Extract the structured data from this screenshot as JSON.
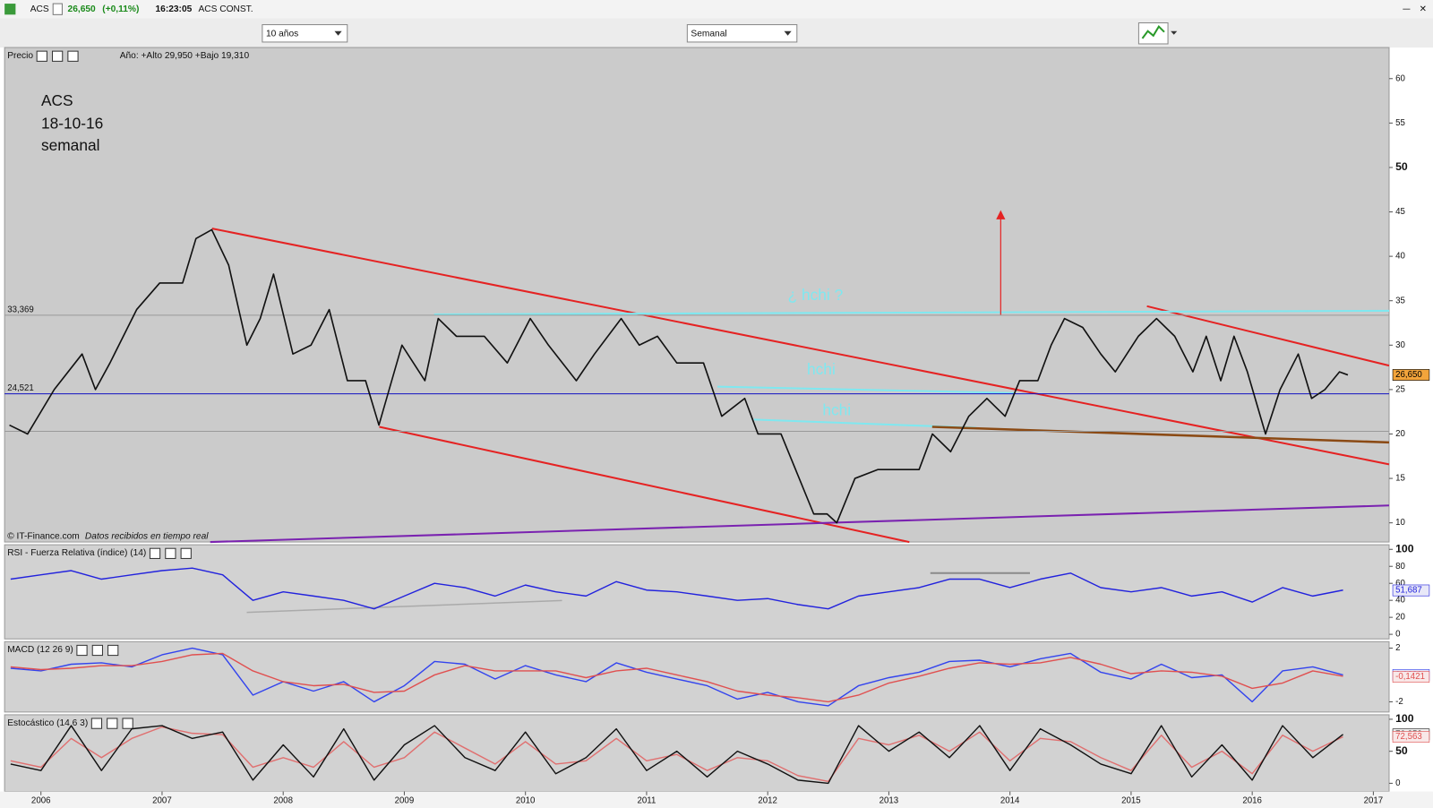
{
  "header": {
    "symbol": "ACS",
    "price": "26,650",
    "change": "(+0,11%)",
    "time": "16:23:05",
    "name": "ACS CONST."
  },
  "controls": {
    "period": "10 años",
    "interval": "Semanal"
  },
  "price_panel": {
    "info": "Año: +Alto 29,950 +Bajo 19,310",
    "notes": [
      "ACS",
      "18-10-16",
      "semanal"
    ],
    "annotations": [
      "¿ hchi ?",
      "hchi",
      "hchi"
    ],
    "copyright": "© IT-Finance.com",
    "source": "Datos recibidos en tiempo real"
  },
  "chart_data": [
    {
      "type": "line",
      "title": "Precio",
      "x": [
        2005.74,
        2005.89,
        2006.11,
        2006.34,
        2006.45,
        2006.57,
        2006.79,
        2006.98,
        2007.17,
        2007.28,
        2007.41,
        2007.55,
        2007.7,
        2007.81,
        2007.92,
        2008.08,
        2008.23,
        2008.38,
        2008.53,
        2008.68,
        2008.79,
        2008.98,
        2009.17,
        2009.28,
        2009.43,
        2009.66,
        2009.85,
        2010.04,
        2010.19,
        2010.42,
        2010.57,
        2010.79,
        2010.94,
        2011.09,
        2011.25,
        2011.47,
        2011.62,
        2011.81,
        2011.92,
        2012.11,
        2012.26,
        2012.38,
        2012.49,
        2012.57,
        2012.72,
        2012.91,
        2013.09,
        2013.25,
        2013.36,
        2013.51,
        2013.66,
        2013.81,
        2013.96,
        2014.08,
        2014.23,
        2014.34,
        2014.45,
        2014.6,
        2014.75,
        2014.87,
        2015.06,
        2015.21,
        2015.36,
        2015.51,
        2015.62,
        2015.74,
        2015.85,
        2015.96,
        2016.11,
        2016.23,
        2016.38,
        2016.49,
        2016.6,
        2016.72,
        2016.79
      ],
      "series": [
        {
          "color": "#111111",
          "values": [
            21,
            20,
            25,
            29,
            25,
            28,
            34,
            37,
            37,
            42,
            43,
            39,
            30,
            33,
            38,
            29,
            30,
            34,
            26,
            26,
            21,
            30,
            26,
            33,
            31,
            31,
            28,
            33,
            30,
            26,
            29,
            33,
            30,
            31,
            28,
            28,
            22,
            24,
            20,
            20,
            15,
            11,
            11,
            10,
            15,
            16,
            16,
            16,
            20,
            18,
            22,
            24,
            22,
            26,
            26,
            30,
            33,
            32,
            29,
            27,
            31,
            33,
            31,
            27,
            31,
            26,
            31,
            27,
            20,
            25,
            29,
            24,
            25,
            27,
            26.65
          ]
        }
      ],
      "xlim": [
        2005.7,
        2017.13
      ],
      "ylim": [
        7.84,
        63.5
      ],
      "yticks": [
        10,
        15,
        20,
        25,
        30,
        35,
        40,
        45,
        50,
        55,
        60
      ],
      "hlines": [
        {
          "value": 33.369,
          "label": "33,369",
          "color": "#9a9a9a"
        },
        {
          "value": 24.521,
          "label": "24,521",
          "color": "#1010c0"
        },
        {
          "value": 20.3,
          "color": "#9a9a9a"
        }
      ],
      "tags": [
        {
          "value": 26.65,
          "label": "26,650",
          "fill": "#f3a43b",
          "color": "#000000"
        }
      ]
    },
    {
      "type": "line",
      "title": "RSI - Fuerza Relativa (índice) (14)",
      "x": [
        2005.75,
        2006,
        2006.25,
        2006.5,
        2006.75,
        2007,
        2007.25,
        2007.5,
        2007.75,
        2008,
        2008.25,
        2008.5,
        2008.75,
        2009,
        2009.25,
        2009.5,
        2009.75,
        2010,
        2010.25,
        2010.5,
        2010.75,
        2011,
        2011.25,
        2011.5,
        2011.75,
        2012,
        2012.25,
        2012.5,
        2012.75,
        2013,
        2013.25,
        2013.5,
        2013.75,
        2014,
        2014.25,
        2014.5,
        2014.75,
        2015,
        2015.25,
        2015.5,
        2015.75,
        2016,
        2016.25,
        2016.5,
        2016.75
      ],
      "series": [
        {
          "color": "#2222dd",
          "values": [
            65,
            70,
            75,
            65,
            70,
            75,
            78,
            70,
            40,
            50,
            45,
            40,
            30,
            45,
            60,
            55,
            45,
            58,
            50,
            45,
            62,
            52,
            50,
            45,
            40,
            42,
            35,
            30,
            45,
            50,
            55,
            65,
            65,
            55,
            65,
            72,
            55,
            50,
            55,
            45,
            50,
            38,
            55,
            45,
            52
          ]
        }
      ],
      "xlim": [
        2005.7,
        2017.13
      ],
      "ylim": [
        -5.4,
        105.4
      ],
      "yticks": [
        0,
        20,
        40,
        60,
        80,
        100
      ],
      "tags": [
        {
          "value": 51.687,
          "label": "51,687",
          "fill": "#e8e8f8",
          "color": "#2222dd"
        }
      ]
    },
    {
      "type": "line",
      "title": "MACD (12 26 9)",
      "x": [
        2005.75,
        2006,
        2006.25,
        2006.5,
        2006.75,
        2007,
        2007.25,
        2007.5,
        2007.75,
        2008,
        2008.25,
        2008.5,
        2008.75,
        2009,
        2009.25,
        2009.5,
        2009.75,
        2010,
        2010.25,
        2010.5,
        2010.75,
        2011,
        2011.25,
        2011.5,
        2011.75,
        2012,
        2012.25,
        2012.5,
        2012.75,
        2013,
        2013.25,
        2013.5,
        2013.75,
        2014,
        2014.25,
        2014.5,
        2014.75,
        2015,
        2015.25,
        2015.5,
        2015.75,
        2016,
        2016.25,
        2016.5,
        2016.75
      ],
      "series": [
        {
          "color": "#3344ee",
          "values": [
            0.5,
            0.3,
            0.8,
            0.9,
            0.6,
            1.5,
            2.0,
            1.5,
            -1.5,
            -0.5,
            -1.2,
            -0.5,
            -2.0,
            -0.8,
            1.0,
            0.8,
            -0.3,
            0.7,
            0.0,
            -0.5,
            0.9,
            0.2,
            -0.3,
            -0.8,
            -1.8,
            -1.3,
            -2.0,
            -2.3,
            -0.8,
            -0.2,
            0.2,
            1.0,
            1.1,
            0.6,
            1.2,
            1.6,
            0.2,
            -0.3,
            0.8,
            -0.2,
            0.0,
            -2.0,
            0.3,
            0.6,
            0.0
          ]
        },
        {
          "color": "#e05050",
          "values": [
            0.6,
            0.4,
            0.5,
            0.7,
            0.7,
            1.0,
            1.5,
            1.6,
            0.3,
            -0.5,
            -0.8,
            -0.7,
            -1.3,
            -1.2,
            0.0,
            0.7,
            0.3,
            0.3,
            0.3,
            -0.2,
            0.3,
            0.5,
            0.0,
            -0.5,
            -1.2,
            -1.5,
            -1.7,
            -2.0,
            -1.5,
            -0.6,
            -0.1,
            0.5,
            0.9,
            0.8,
            0.9,
            1.3,
            0.8,
            0.1,
            0.3,
            0.2,
            -0.1,
            -1.0,
            -0.6,
            0.3,
            -0.1
          ]
        }
      ],
      "xlim": [
        2005.7,
        2017.13
      ],
      "ylim": [
        -2.76,
        2.48
      ],
      "yticks": [
        -2,
        2
      ],
      "tags": [
        {
          "value": 0.0039,
          "label": "0,0039",
          "fill": "#e8e8f8",
          "color": "#3344ee"
        },
        {
          "value": -0.1421,
          "label": "-0,1421",
          "fill": "#f8e8e8",
          "color": "#e05050"
        }
      ]
    },
    {
      "type": "line",
      "title": "Estocástico (14 6 3)",
      "x": [
        2005.75,
        2006,
        2006.25,
        2006.5,
        2006.75,
        2007,
        2007.25,
        2007.5,
        2007.75,
        2008,
        2008.25,
        2008.5,
        2008.75,
        2009,
        2009.25,
        2009.5,
        2009.75,
        2010,
        2010.25,
        2010.5,
        2010.75,
        2011,
        2011.25,
        2011.5,
        2011.75,
        2012,
        2012.25,
        2012.5,
        2012.75,
        2013,
        2013.25,
        2013.5,
        2013.75,
        2014,
        2014.25,
        2014.5,
        2014.75,
        2015,
        2015.25,
        2015.5,
        2015.75,
        2016,
        2016.25,
        2016.5,
        2016.75
      ],
      "series": [
        {
          "color": "#e07070",
          "values": [
            35,
            25,
            70,
            40,
            70,
            88,
            78,
            76,
            25,
            40,
            25,
            65,
            25,
            40,
            80,
            55,
            30,
            65,
            30,
            35,
            70,
            35,
            45,
            20,
            40,
            35,
            12,
            3,
            70,
            60,
            75,
            50,
            80,
            35,
            70,
            65,
            40,
            20,
            75,
            25,
            50,
            15,
            75,
            50,
            72.563
          ]
        },
        {
          "color": "#111111",
          "values": [
            30,
            20,
            90,
            20,
            85,
            90,
            70,
            80,
            5,
            60,
            10,
            85,
            5,
            60,
            90,
            40,
            20,
            80,
            15,
            40,
            85,
            20,
            50,
            10,
            50,
            30,
            5,
            0,
            90,
            50,
            80,
            40,
            90,
            20,
            85,
            60,
            30,
            15,
            90,
            10,
            60,
            5,
            90,
            40,
            76.352
          ]
        }
      ],
      "xlim": [
        2005.7,
        2017.13
      ],
      "ylim": [
        -12.9,
        107
      ],
      "yticks": [
        0,
        50,
        100
      ],
      "xticks": [
        2006,
        2007,
        2008,
        2009,
        2010,
        2011,
        2012,
        2013,
        2014,
        2015,
        2016,
        2017
      ],
      "tags": [
        {
          "value": 76.352,
          "label": "76,352",
          "fill": "#f0f0f0",
          "color": "#111111"
        },
        {
          "value": 72.563,
          "label": "72,563",
          "fill": "#f8e8e8",
          "color": "#e05050"
        }
      ]
    }
  ]
}
